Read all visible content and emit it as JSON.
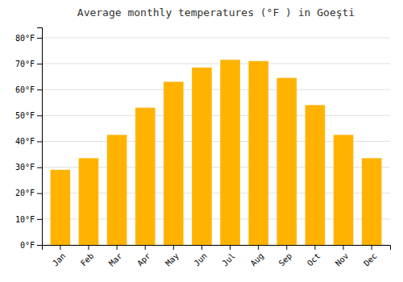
{
  "chart_data": {
    "type": "bar",
    "title": "Average monthly temperatures (°F ) in Goeşti",
    "categories": [
      "Jan",
      "Feb",
      "Mar",
      "Apr",
      "May",
      "Jun",
      "Jul",
      "Aug",
      "Sep",
      "Oct",
      "Nov",
      "Dec"
    ],
    "values": [
      29,
      33.5,
      42.5,
      53,
      63,
      68.5,
      71.5,
      71,
      64.5,
      54,
      42.5,
      33.5
    ],
    "color": "#FFB300",
    "ylim": [
      0,
      84
    ],
    "yticks": [
      {
        "value": 0,
        "label": "0°F"
      },
      {
        "value": 10,
        "label": "10°F"
      },
      {
        "value": 20,
        "label": "20°F"
      },
      {
        "value": 30,
        "label": "30°F"
      },
      {
        "value": 40,
        "label": "40°F"
      },
      {
        "value": 50,
        "label": "50°F"
      },
      {
        "value": 60,
        "label": "60°F"
      },
      {
        "value": 70,
        "label": "70°F"
      },
      {
        "value": 80,
        "label": "80°F"
      }
    ],
    "grid": true
  }
}
